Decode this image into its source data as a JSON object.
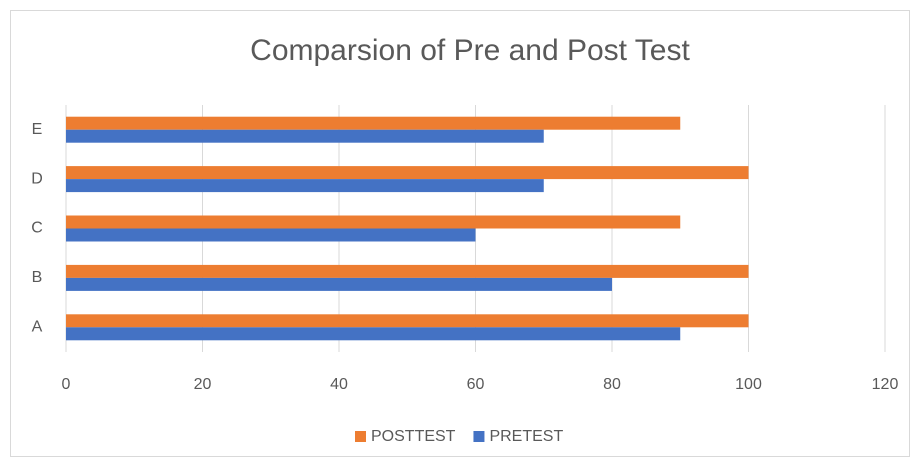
{
  "chart_data": {
    "type": "bar",
    "orientation": "horizontal",
    "title": "Comparsion of Pre and Post Test",
    "categories": [
      "A",
      "B",
      "C",
      "D",
      "E"
    ],
    "series": [
      {
        "name": "POSTTEST",
        "color": "#ed7d31",
        "values": [
          100,
          100,
          90,
          100,
          90
        ]
      },
      {
        "name": "PRETEST",
        "color": "#4472c4",
        "values": [
          90,
          80,
          60,
          70,
          70
        ]
      }
    ],
    "xlim": [
      0,
      120
    ],
    "xticks": [
      0,
      20,
      40,
      60,
      80,
      100,
      120
    ],
    "grid": true,
    "legend": "bottom"
  }
}
